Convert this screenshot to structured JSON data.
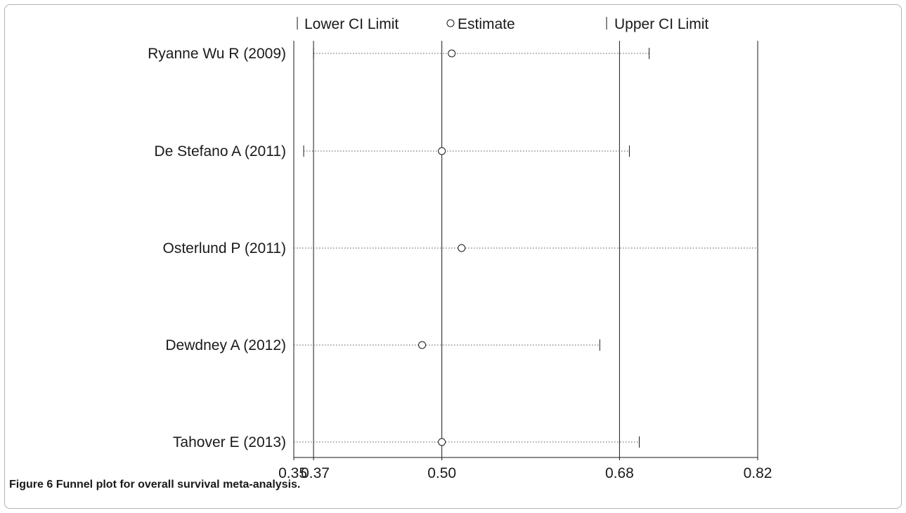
{
  "chart_data": {
    "type": "forest",
    "legend": {
      "lower": "Lower CI Limit",
      "estimate": "Estimate",
      "upper": "Upper CI Limit"
    },
    "studies": [
      {
        "name": "Ryanne Wu R (2009)",
        "lower": 0.37,
        "estimate": 0.51,
        "upper": 0.71
      },
      {
        "name": "De Stefano A (2011)",
        "lower": 0.36,
        "estimate": 0.5,
        "upper": 0.69
      },
      {
        "name": "Osterlund P (2011)",
        "lower": 0.35,
        "estimate": 0.52,
        "upper": 0.82
      },
      {
        "name": "Dewdney A (2012)",
        "lower": 0.35,
        "estimate": 0.48,
        "upper": 0.66
      },
      {
        "name": "Tahover E (2013)",
        "lower": 0.35,
        "estimate": 0.5,
        "upper": 0.7
      }
    ],
    "reference_lines": [
      0.37,
      0.5,
      0.68
    ],
    "xticks": [
      {
        "value": 0.35,
        "label": "0.35"
      },
      {
        "value": 0.37,
        "label": "0.37"
      },
      {
        "value": 0.5,
        "label": "0.50"
      },
      {
        "value": 0.68,
        "label": "0.68"
      },
      {
        "value": 0.82,
        "label": "0.82"
      }
    ],
    "xlim": [
      0.35,
      0.82
    ]
  },
  "caption": {
    "label": "Figure 6",
    "text": "Funnel plot for overall survival meta-analysis."
  }
}
